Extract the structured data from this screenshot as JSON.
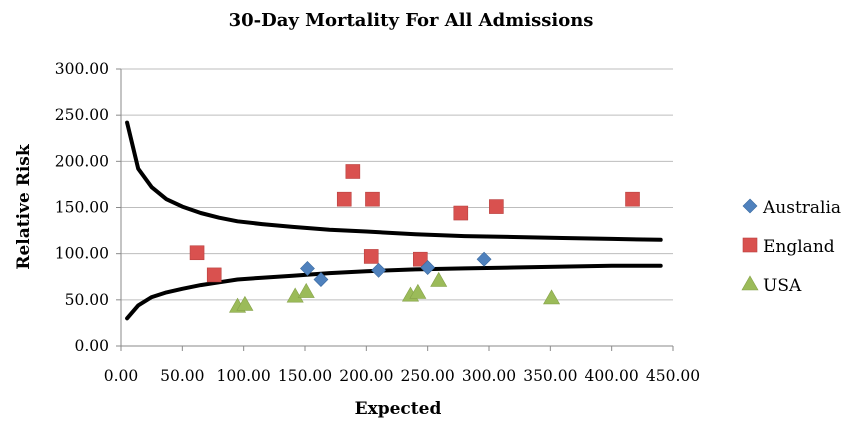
{
  "chart_data": {
    "type": "scatter",
    "title": "30-Day Mortality For All Admissions",
    "xlabel": "Expected",
    "ylabel": "Relative Risk",
    "xlim": [
      0,
      450
    ],
    "ylim": [
      0,
      300
    ],
    "x_ticks": [
      0,
      50,
      100,
      150,
      200,
      250,
      300,
      350,
      400,
      450
    ],
    "x_tick_labels": [
      "0.00",
      "50.00",
      "100.00",
      "150.00",
      "200.00",
      "250.00",
      "300.00",
      "350.00",
      "400.00",
      "450.00"
    ],
    "y_ticks": [
      0,
      50,
      100,
      150,
      200,
      250,
      300
    ],
    "y_tick_labels": [
      "0.00",
      "50.00",
      "100.00",
      "150.00",
      "200.00",
      "250.00",
      "300.00"
    ],
    "grid": "horizontal",
    "legend_position": "right",
    "series": [
      {
        "name": "Australia",
        "marker": "diamond",
        "color": "#4f81bd",
        "points": [
          [
            152,
            84
          ],
          [
            163,
            72
          ],
          [
            210,
            82
          ],
          [
            250,
            85
          ],
          [
            296,
            94
          ]
        ]
      },
      {
        "name": "England",
        "marker": "square",
        "color": "#d9514f",
        "points": [
          [
            62,
            101
          ],
          [
            76,
            77
          ],
          [
            182,
            159
          ],
          [
            189,
            189
          ],
          [
            205,
            159
          ],
          [
            204,
            97
          ],
          [
            244,
            94
          ],
          [
            277,
            144
          ],
          [
            306,
            151
          ],
          [
            417,
            159
          ]
        ]
      },
      {
        "name": "USA",
        "marker": "triangle",
        "color": "#9bbb59",
        "points": [
          [
            95,
            43
          ],
          [
            101,
            45
          ],
          [
            142,
            54
          ],
          [
            151,
            59
          ],
          [
            236,
            55
          ],
          [
            242,
            58
          ],
          [
            259,
            71
          ],
          [
            351,
            52
          ]
        ]
      }
    ],
    "control_limits": {
      "color": "#000000",
      "upper": [
        [
          5,
          242
        ],
        [
          14,
          192
        ],
        [
          25,
          172
        ],
        [
          37,
          159
        ],
        [
          50,
          151
        ],
        [
          65,
          144
        ],
        [
          80,
          139
        ],
        [
          95,
          135
        ],
        [
          115,
          132
        ],
        [
          140,
          129
        ],
        [
          170,
          126
        ],
        [
          200,
          124
        ],
        [
          240,
          121
        ],
        [
          280,
          119
        ],
        [
          320,
          118
        ],
        [
          360,
          117
        ],
        [
          400,
          116
        ],
        [
          440,
          115
        ]
      ],
      "lower": [
        [
          5,
          30
        ],
        [
          14,
          44
        ],
        [
          25,
          53
        ],
        [
          37,
          58
        ],
        [
          50,
          62
        ],
        [
          65,
          66
        ],
        [
          80,
          69
        ],
        [
          95,
          72
        ],
        [
          115,
          74
        ],
        [
          140,
          76
        ],
        [
          170,
          79
        ],
        [
          200,
          81
        ],
        [
          240,
          83
        ],
        [
          280,
          84
        ],
        [
          320,
          85
        ],
        [
          360,
          86
        ],
        [
          400,
          87
        ],
        [
          440,
          87
        ]
      ]
    }
  }
}
